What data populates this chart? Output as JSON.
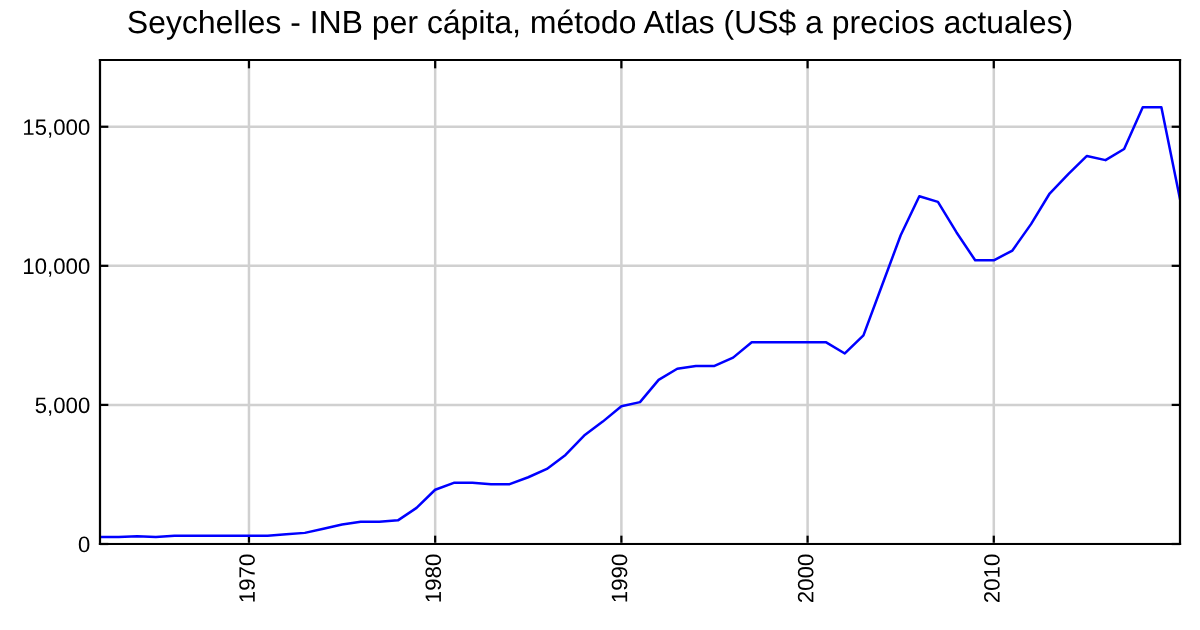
{
  "chart_data": {
    "type": "line",
    "title": "Seychelles - INB per cápita, método Atlas (US$ a precios actuales)",
    "x": [
      1962,
      1963,
      1964,
      1965,
      1966,
      1967,
      1968,
      1969,
      1970,
      1971,
      1972,
      1973,
      1974,
      1975,
      1976,
      1977,
      1978,
      1979,
      1980,
      1981,
      1982,
      1983,
      1984,
      1985,
      1986,
      1987,
      1988,
      1989,
      1990,
      1991,
      1992,
      1993,
      1994,
      1995,
      1996,
      1997,
      1998,
      1999,
      2000,
      2001,
      2002,
      2003,
      2004,
      2005,
      2006,
      2007,
      2008,
      2009,
      2010,
      2011,
      2012,
      2013,
      2014,
      2015,
      2016,
      2017,
      2018,
      2019,
      2020
    ],
    "series": [
      {
        "color": "#0000ff",
        "values": [
          250,
          250,
          280,
          250,
          300,
          300,
          300,
          300,
          300,
          300,
          350,
          400,
          550,
          700,
          800,
          800,
          850,
          1300,
          1950,
          2200,
          2200,
          2150,
          2150,
          2400,
          2700,
          3200,
          3900,
          4400,
          4950,
          5100,
          5900,
          6300,
          6400,
          6400,
          6700,
          7250,
          7250,
          7250,
          7250,
          7250,
          6850,
          7500,
          9300,
          11100,
          12500,
          12300,
          11200,
          10200,
          10200,
          10550,
          11500,
          12600,
          13300,
          13950,
          13800,
          14200,
          15700,
          15700,
          12400
        ]
      }
    ],
    "xlim": [
      1962,
      2020
    ],
    "ylim": [
      0,
      17400
    ],
    "xticks": [
      1970,
      1980,
      1990,
      2000,
      2010
    ],
    "yticks": [
      {
        "value": 0,
        "label": "0"
      },
      {
        "value": 5000,
        "label": "5,000"
      },
      {
        "value": 10000,
        "label": "10,000"
      },
      {
        "value": 15000,
        "label": "15,000"
      }
    ],
    "grid": true,
    "legend": false
  }
}
